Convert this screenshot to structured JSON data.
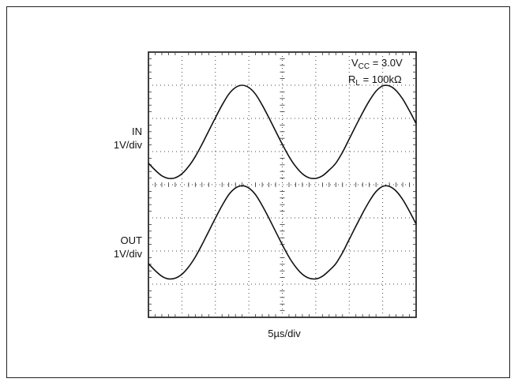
{
  "chart_data": {
    "type": "line",
    "title": "",
    "xlabel": "5µs/div",
    "xlim": [
      0,
      8
    ],
    "ylim": [
      0,
      8
    ],
    "grid": true,
    "annotations": {
      "vcc": {
        "symbol": "V",
        "sub": "CC",
        "text": " = 3.0V"
      },
      "rl": {
        "symbol": "R",
        "sub": "L",
        "text": " = 100kΩ"
      }
    },
    "series": [
      {
        "label_line1": "IN",
        "label_line2": "1V/div",
        "x": [
          0,
          0.2,
          0.4,
          0.6,
          0.8,
          1.0,
          1.2,
          1.4,
          1.6,
          1.8,
          2.0,
          2.2,
          2.4,
          2.6,
          2.8,
          3.0,
          3.2,
          3.4,
          3.6,
          3.8,
          4.0,
          4.2,
          4.4,
          4.6,
          4.8,
          5.0,
          5.2,
          5.4,
          5.6,
          5.8,
          6.0,
          6.2,
          6.4,
          6.6,
          6.8,
          7.0,
          7.2,
          7.4,
          7.6,
          7.8,
          8.0
        ],
        "y": [
          4.65,
          4.44,
          4.27,
          4.19,
          4.21,
          4.33,
          4.55,
          4.85,
          5.22,
          5.62,
          6.02,
          6.4,
          6.73,
          6.93,
          7.0,
          6.93,
          6.73,
          6.4,
          6.02,
          5.62,
          5.22,
          4.85,
          4.55,
          4.33,
          4.21,
          4.19,
          4.27,
          4.44,
          4.65,
          4.98,
          5.38,
          5.78,
          6.17,
          6.53,
          6.82,
          6.98,
          6.98,
          6.84,
          6.58,
          6.23,
          5.84
        ]
      },
      {
        "label_line1": "OUT",
        "label_line2": "1V/div",
        "x": [
          0,
          0.2,
          0.4,
          0.6,
          0.8,
          1.0,
          1.2,
          1.4,
          1.6,
          1.8,
          2.0,
          2.2,
          2.4,
          2.6,
          2.8,
          3.0,
          3.2,
          3.4,
          3.6,
          3.8,
          4.0,
          4.2,
          4.4,
          4.6,
          4.8,
          5.0,
          5.2,
          5.4,
          5.6,
          5.8,
          6.0,
          6.2,
          6.4,
          6.6,
          6.8,
          7.0,
          7.2,
          7.4,
          7.6,
          7.8,
          8.0
        ],
        "y": [
          1.62,
          1.41,
          1.24,
          1.16,
          1.18,
          1.3,
          1.52,
          1.82,
          2.19,
          2.59,
          2.99,
          3.37,
          3.7,
          3.9,
          3.97,
          3.9,
          3.7,
          3.37,
          2.99,
          2.59,
          2.19,
          1.82,
          1.52,
          1.3,
          1.18,
          1.16,
          1.24,
          1.41,
          1.62,
          1.95,
          2.35,
          2.75,
          3.14,
          3.5,
          3.79,
          3.95,
          3.95,
          3.81,
          3.55,
          3.2,
          2.81
        ]
      }
    ]
  }
}
